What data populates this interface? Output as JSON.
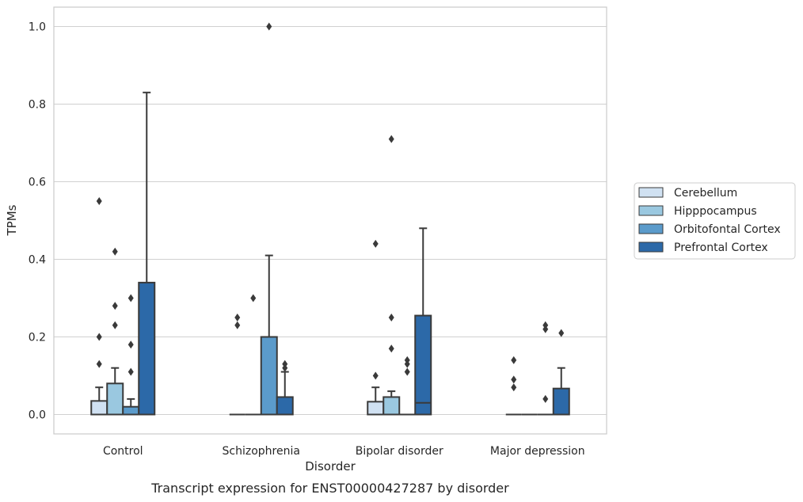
{
  "chart_data": {
    "type": "box",
    "caption": "Transcript expression for ENST00000427287 by disorder",
    "xlabel": "Disorder",
    "ylabel": "TPMs",
    "ylim": [
      -0.05,
      1.05
    ],
    "yticks": [
      0.0,
      0.2,
      0.4,
      0.6,
      0.8,
      1.0
    ],
    "ytick_labels": [
      "0.0",
      "0.2",
      "0.4",
      "0.6",
      "0.8",
      "1.0"
    ],
    "grid": "horizontal",
    "legend_position": "right",
    "categories": [
      "Control",
      "Schizophrenia",
      "Bipolar disorder",
      "Major depression"
    ],
    "series": [
      {
        "name": "Cerebellum",
        "color": "#d0e1f2",
        "boxes": [
          {
            "q1": 0.0,
            "median": 0.0,
            "q3": 0.035,
            "whislo": 0.0,
            "whishi": 0.07,
            "fliers": [
              0.13,
              0.2,
              0.55
            ]
          },
          {
            "q1": 0.0,
            "median": 0.0,
            "q3": 0.0,
            "whislo": 0.0,
            "whishi": 0.0,
            "fliers": [
              0.23,
              0.25
            ]
          },
          {
            "q1": 0.0,
            "median": 0.0,
            "q3": 0.033,
            "whislo": 0.0,
            "whishi": 0.07,
            "fliers": [
              0.1,
              0.44
            ]
          },
          {
            "q1": 0.0,
            "median": 0.0,
            "q3": 0.0,
            "whislo": 0.0,
            "whishi": 0.0,
            "fliers": [
              0.07,
              0.09,
              0.14
            ]
          }
        ]
      },
      {
        "name": "Hipppocampus",
        "color": "#9ac8e0",
        "boxes": [
          {
            "q1": 0.0,
            "median": 0.0,
            "q3": 0.08,
            "whislo": 0.0,
            "whishi": 0.12,
            "fliers": [
              0.23,
              0.28,
              0.42
            ]
          },
          {
            "q1": 0.0,
            "median": 0.0,
            "q3": 0.0,
            "whislo": 0.0,
            "whishi": 0.0,
            "fliers": [
              0.3
            ]
          },
          {
            "q1": 0.0,
            "median": 0.0,
            "q3": 0.045,
            "whislo": 0.0,
            "whishi": 0.06,
            "fliers": [
              0.17,
              0.25,
              0.71
            ]
          },
          {
            "q1": 0.0,
            "median": 0.0,
            "q3": 0.0,
            "whislo": 0.0,
            "whishi": 0.0,
            "fliers": []
          }
        ]
      },
      {
        "name": "Orbitofontal Cortex",
        "color": "#5b9bcb",
        "boxes": [
          {
            "q1": 0.0,
            "median": 0.0,
            "q3": 0.02,
            "whislo": 0.0,
            "whishi": 0.04,
            "fliers": [
              0.11,
              0.18,
              0.3
            ]
          },
          {
            "q1": 0.0,
            "median": 0.0,
            "q3": 0.2,
            "whislo": 0.0,
            "whishi": 0.41,
            "fliers": [
              1.0
            ]
          },
          {
            "q1": 0.0,
            "median": 0.0,
            "q3": 0.0,
            "whislo": 0.0,
            "whishi": 0.0,
            "fliers": [
              0.11,
              0.13,
              0.14
            ]
          },
          {
            "q1": 0.0,
            "median": 0.0,
            "q3": 0.0,
            "whislo": 0.0,
            "whishi": 0.0,
            "fliers": [
              0.04,
              0.22,
              0.23
            ]
          }
        ]
      },
      {
        "name": "Prefrontal Cortex",
        "color": "#2c69a8",
        "boxes": [
          {
            "q1": 0.0,
            "median": 0.0,
            "q3": 0.34,
            "whislo": 0.0,
            "whishi": 0.83,
            "fliers": []
          },
          {
            "q1": 0.0,
            "median": 0.0,
            "q3": 0.045,
            "whislo": 0.0,
            "whishi": 0.11,
            "fliers": [
              0.12,
              0.13
            ]
          },
          {
            "q1": 0.0,
            "median": 0.03,
            "q3": 0.255,
            "whislo": 0.0,
            "whishi": 0.48,
            "fliers": []
          },
          {
            "q1": 0.0,
            "median": 0.0,
            "q3": 0.067,
            "whislo": 0.0,
            "whishi": 0.12,
            "fliers": [
              0.21
            ]
          }
        ]
      }
    ]
  }
}
